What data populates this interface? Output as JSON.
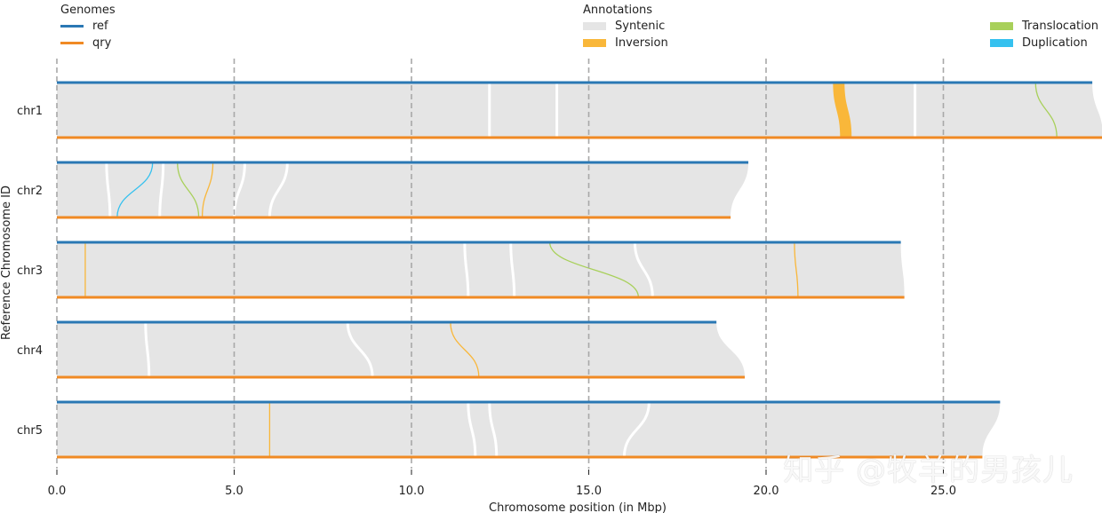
{
  "chart_data": {
    "type": "synteny",
    "xlabel": "Chromosome position (in Mbp)",
    "ylabel": "Reference Chromosome ID",
    "xlim": [
      0,
      29.5
    ],
    "xticks": [
      0,
      5,
      10,
      15,
      20,
      25
    ],
    "xtick_labels": [
      "0.0",
      "5.0",
      "10.0",
      "15.0",
      "20.0",
      "25.0"
    ],
    "grid": "vertical dashed at ticks",
    "legend_genomes": {
      "title": "Genomes",
      "items": [
        {
          "name": "ref",
          "color": "#2a78b4"
        },
        {
          "name": "qry",
          "color": "#f08a24"
        }
      ]
    },
    "legend_annotations": {
      "title": "Annotations",
      "items": [
        {
          "name": "Syntenic",
          "color": "#e5e5e5"
        },
        {
          "name": "Inversion",
          "color": "#f9b73a"
        },
        {
          "name": "Translocation",
          "color": "#a8d05a"
        },
        {
          "name": "Duplication",
          "color": "#35c1ef"
        }
      ]
    },
    "chromosomes": [
      {
        "id": "chr1",
        "ref_length": 29.2,
        "qry_length": 29.5
      },
      {
        "id": "chr2",
        "ref_length": 19.5,
        "qry_length": 19.0
      },
      {
        "id": "chr3",
        "ref_length": 23.8,
        "qry_length": 23.9
      },
      {
        "id": "chr4",
        "ref_length": 18.6,
        "qry_length": 19.4
      },
      {
        "id": "chr5",
        "ref_length": 26.6,
        "qry_length": 26.1
      }
    ],
    "gaps": [
      {
        "chr": "chr1",
        "ref": 12.2,
        "qry": 12.2
      },
      {
        "chr": "chr1",
        "ref": 14.1,
        "qry": 14.1
      },
      {
        "chr": "chr1",
        "ref": 24.2,
        "qry": 24.2
      },
      {
        "chr": "chr2",
        "ref": 1.4,
        "qry": 1.5
      },
      {
        "chr": "chr2",
        "ref": 3.0,
        "qry": 2.9
      },
      {
        "chr": "chr2",
        "ref": 5.3,
        "qry": 5.0
      },
      {
        "chr": "chr2",
        "ref": 6.5,
        "qry": 6.0
      },
      {
        "chr": "chr3",
        "ref": 11.5,
        "qry": 11.6
      },
      {
        "chr": "chr3",
        "ref": 12.8,
        "qry": 12.9
      },
      {
        "chr": "chr3",
        "ref": 16.3,
        "qry": 16.8
      },
      {
        "chr": "chr4",
        "ref": 2.5,
        "qry": 2.6
      },
      {
        "chr": "chr4",
        "ref": 8.2,
        "qry": 8.9
      },
      {
        "chr": "chr5",
        "ref": 11.6,
        "qry": 11.8
      },
      {
        "chr": "chr5",
        "ref": 12.2,
        "qry": 12.4
      },
      {
        "chr": "chr5",
        "ref": 16.7,
        "qry": 16.0
      }
    ],
    "annotations": [
      {
        "chr": "chr1",
        "type": "Inversion",
        "ref_start": 21.9,
        "ref_end": 22.2,
        "qry_start": 22.1,
        "qry_end": 22.4
      },
      {
        "chr": "chr1",
        "type": "Translocation",
        "ref_start": 27.6,
        "ref_end": 27.6,
        "qry_start": 28.2,
        "qry_end": 28.2
      },
      {
        "chr": "chr2",
        "type": "Duplication",
        "ref_start": 2.7,
        "ref_end": 2.7,
        "qry_start": 1.7,
        "qry_end": 1.7
      },
      {
        "chr": "chr2",
        "type": "Translocation",
        "ref_start": 3.4,
        "ref_end": 3.4,
        "qry_start": 4.0,
        "qry_end": 4.0
      },
      {
        "chr": "chr2",
        "type": "Inversion",
        "ref_start": 4.4,
        "ref_end": 4.4,
        "qry_start": 4.1,
        "qry_end": 4.1
      },
      {
        "chr": "chr3",
        "type": "Inversion",
        "ref_start": 0.8,
        "ref_end": 0.8,
        "qry_start": 0.8,
        "qry_end": 0.8
      },
      {
        "chr": "chr3",
        "type": "Translocation",
        "ref_start": 13.9,
        "ref_end": 13.9,
        "qry_start": 16.4,
        "qry_end": 16.4
      },
      {
        "chr": "chr3",
        "type": "Inversion",
        "ref_start": 20.8,
        "ref_end": 20.8,
        "qry_start": 20.9,
        "qry_end": 20.9
      },
      {
        "chr": "chr4",
        "type": "Inversion",
        "ref_start": 11.1,
        "ref_end": 11.1,
        "qry_start": 11.9,
        "qry_end": 11.9
      },
      {
        "chr": "chr5",
        "type": "Inversion",
        "ref_start": 6.0,
        "ref_end": 6.0,
        "qry_start": 6.0,
        "qry_end": 6.0
      }
    ]
  },
  "watermark": "知乎 @牧羊的男孩儿"
}
